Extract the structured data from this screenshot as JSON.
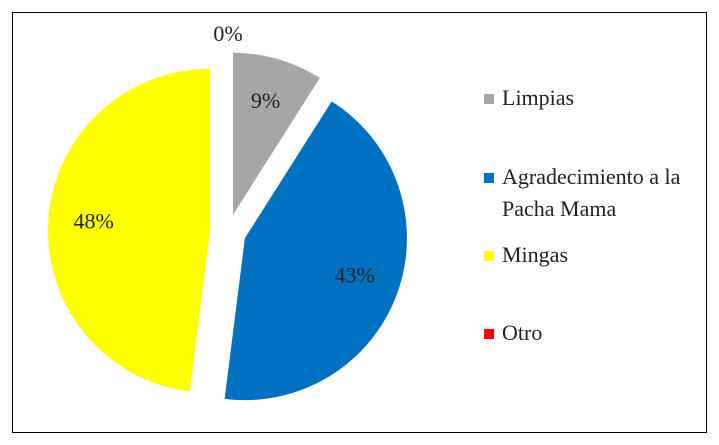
{
  "chart_data": {
    "type": "pie",
    "categories": [
      "Limpias",
      "Agradecimiento a la Pacha Mama",
      "Mingas",
      "Otro"
    ],
    "values": [
      9,
      43,
      48,
      0
    ],
    "value_labels": [
      "9%",
      "43%",
      "48%",
      "0%"
    ],
    "colors": [
      "#a6a6a6",
      "#0070c0",
      "#ffff00",
      "#ff0000"
    ],
    "legend": "right"
  }
}
